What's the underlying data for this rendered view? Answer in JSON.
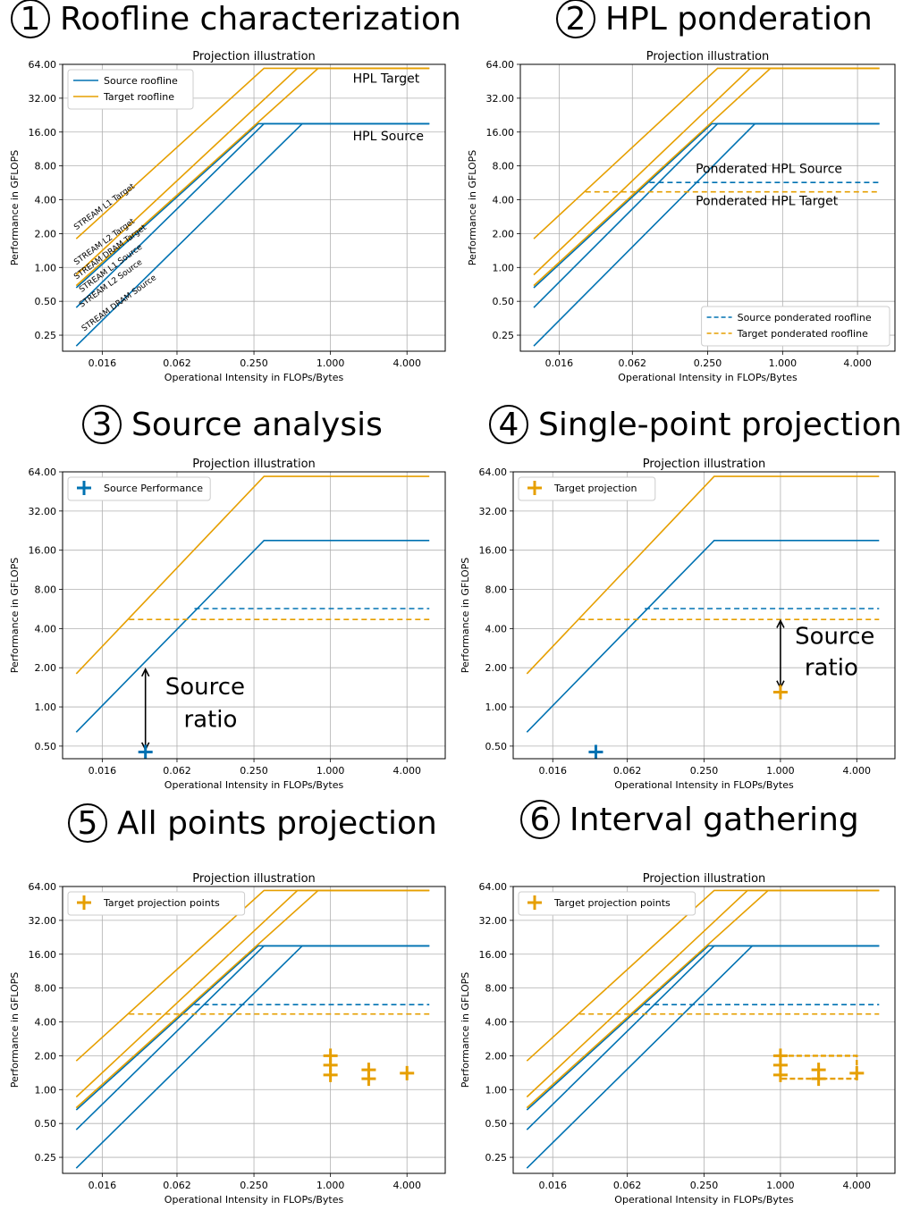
{
  "figure": {
    "colors": {
      "source": "#0072b2",
      "target": "#e69f00",
      "grid": "#b0b0b0",
      "frame": "#000000"
    }
  },
  "chart_data": [
    {
      "type": "line",
      "step_number": "1",
      "step_title": "Roofline characterization",
      "title": "Projection illustration",
      "xlabel": "Operational Intensity in FLOPs/Bytes",
      "ylabel": "Performance in GFLOPS",
      "xscale": "log2",
      "yscale": "log2",
      "xlim": [
        0.0078,
        8
      ],
      "ylim": [
        0.18,
        64
      ],
      "xticks": [
        "0.016",
        "0.062",
        "0.250",
        "1.000",
        "4.000"
      ],
      "yticks": [
        "0.25",
        "0.50",
        "1.00",
        "2.00",
        "4.00",
        "8.00",
        "16.00",
        "32.00",
        "64.00"
      ],
      "grid": true,
      "series": [
        {
          "name": "Source roofline",
          "color": "#0072b2",
          "dash": "",
          "x": [
            0.01,
            0.6,
            6
          ],
          "y": [
            0.2,
            19,
            19
          ]
        },
        {
          "color": "#0072b2",
          "dash": "",
          "x": [
            0.01,
            0.3,
            6
          ],
          "y": [
            0.44,
            19,
            19
          ]
        },
        {
          "color": "#0072b2",
          "dash": "",
          "x": [
            0.01,
            0.27,
            6
          ],
          "y": [
            0.66,
            19,
            19
          ]
        },
        {
          "name": "Target roofline",
          "color": "#e69f00",
          "dash": "",
          "x": [
            0.01,
            0.3,
            6
          ],
          "y": [
            1.8,
            59,
            59
          ]
        },
        {
          "color": "#e69f00",
          "dash": "",
          "x": [
            0.01,
            0.55,
            6
          ],
          "y": [
            0.86,
            59,
            59
          ]
        },
        {
          "color": "#e69f00",
          "dash": "",
          "x": [
            0.01,
            0.8,
            6
          ],
          "y": [
            0.69,
            59,
            59
          ]
        }
      ],
      "legend": {
        "position": "top-left",
        "entries": [
          "Source roofline",
          "Target roofline"
        ]
      },
      "annotations": [
        {
          "text": "HPL Target",
          "x": 1.5,
          "y": 44
        },
        {
          "text": "HPL Source",
          "x": 1.5,
          "y": 13.5
        },
        {
          "text": "STREAM L1 Target",
          "x": 0.01,
          "y": 2.15,
          "rotate": -36
        },
        {
          "text": "STREAM L2 Target",
          "x": 0.01,
          "y": 1.05,
          "rotate": -36
        },
        {
          "text": "STREAM DRAM Target",
          "x": 0.01,
          "y": 0.78,
          "rotate": -36
        },
        {
          "text": "STREAM L1 Source",
          "x": 0.011,
          "y": 0.6,
          "rotate": -36
        },
        {
          "text": "STREAM L2 Source",
          "x": 0.011,
          "y": 0.44,
          "rotate": -36
        },
        {
          "text": "STREAM DRAM Source",
          "x": 0.0115,
          "y": 0.27,
          "rotate": -36
        }
      ]
    },
    {
      "type": "line",
      "step_number": "2",
      "step_title": "HPL ponderation",
      "title": "Projection illustration",
      "xlabel": "Operational Intensity in FLOPs/Bytes",
      "ylabel": "Performance in GFLOPS",
      "xscale": "log2",
      "yscale": "log2",
      "xlim": [
        0.0078,
        8
      ],
      "ylim": [
        0.18,
        64
      ],
      "xticks": [
        "0.016",
        "0.062",
        "0.250",
        "1.000",
        "4.000"
      ],
      "yticks": [
        "0.25",
        "0.50",
        "1.00",
        "2.00",
        "4.00",
        "8.00",
        "16.00",
        "32.00",
        "64.00"
      ],
      "grid": true,
      "series": [
        {
          "color": "#0072b2",
          "dash": "",
          "x": [
            0.01,
            0.6,
            6
          ],
          "y": [
            0.2,
            19,
            19
          ]
        },
        {
          "color": "#0072b2",
          "dash": "",
          "x": [
            0.01,
            0.3,
            6
          ],
          "y": [
            0.44,
            19,
            19
          ]
        },
        {
          "color": "#0072b2",
          "dash": "",
          "x": [
            0.01,
            0.27,
            6
          ],
          "y": [
            0.66,
            19,
            19
          ]
        },
        {
          "color": "#e69f00",
          "dash": "",
          "x": [
            0.01,
            0.3,
            6
          ],
          "y": [
            1.8,
            59,
            59
          ]
        },
        {
          "color": "#e69f00",
          "dash": "",
          "x": [
            0.01,
            0.55,
            6
          ],
          "y": [
            0.86,
            59,
            59
          ]
        },
        {
          "color": "#e69f00",
          "dash": "",
          "x": [
            0.01,
            0.8,
            6
          ],
          "y": [
            0.69,
            59,
            59
          ]
        },
        {
          "name": "Source ponderated roofline",
          "color": "#0072b2",
          "dash": "6,4",
          "x": [
            0.085,
            6
          ],
          "y": [
            5.7,
            5.7
          ]
        },
        {
          "name": "Target ponderated roofline",
          "color": "#e69f00",
          "dash": "6,4",
          "x": [
            0.026,
            6
          ],
          "y": [
            4.7,
            4.7
          ]
        }
      ],
      "legend": {
        "position": "bottom-right",
        "entries": [
          "Source ponderated roofline",
          "Target ponderated roofline"
        ]
      },
      "annotations": [
        {
          "text": "Ponderated HPL Source",
          "x": 0.2,
          "y": 6.9
        },
        {
          "text": "Ponderated HPL Target",
          "x": 0.2,
          "y": 3.6
        }
      ]
    },
    {
      "type": "line",
      "step_number": "3",
      "step_title": "Source analysis",
      "title": "Projection illustration",
      "xlabel": "Operational Intensity in FLOPs/Bytes",
      "ylabel": "Performance in GFLOPS",
      "xscale": "log2",
      "yscale": "log2",
      "xlim": [
        0.0078,
        8
      ],
      "ylim": [
        0.4,
        64
      ],
      "xticks": [
        "0.016",
        "0.062",
        "0.250",
        "1.000",
        "4.000"
      ],
      "yticks": [
        "0.50",
        "1.00",
        "2.00",
        "4.00",
        "8.00",
        "16.00",
        "32.00",
        "64.00"
      ],
      "grid": true,
      "series": [
        {
          "color": "#0072b2",
          "dash": "",
          "x": [
            0.01,
            0.3,
            6
          ],
          "y": [
            0.64,
            19,
            19
          ]
        },
        {
          "color": "#e69f00",
          "dash": "",
          "x": [
            0.01,
            0.3,
            6
          ],
          "y": [
            1.8,
            59,
            59
          ]
        },
        {
          "color": "#0072b2",
          "dash": "6,4",
          "x": [
            0.085,
            6
          ],
          "y": [
            5.7,
            5.7
          ]
        },
        {
          "color": "#e69f00",
          "dash": "6,4",
          "x": [
            0.026,
            6
          ],
          "y": [
            4.7,
            4.7
          ]
        }
      ],
      "points": [
        {
          "name": "Source Performance",
          "color": "#0072b2",
          "x": 0.035,
          "y": 0.45
        }
      ],
      "legend": {
        "position": "top-left",
        "entries": [
          "Source Performance"
        ]
      },
      "arrows": [
        {
          "x": 0.035,
          "y1": 0.47,
          "y2": 1.95
        }
      ],
      "annotations": [
        {
          "text": "Source",
          "x": 0.05,
          "y": 1.25,
          "size": "big"
        },
        {
          "text": "ratio",
          "x": 0.07,
          "y": 0.7,
          "size": "big"
        }
      ]
    },
    {
      "type": "line",
      "step_number": "4",
      "step_title": "Single-point projection",
      "title": "Projection illustration",
      "xlabel": "Operational Intensity in FLOPs/Bytes",
      "ylabel": "Performance in GFLOPS",
      "xscale": "log2",
      "yscale": "log2",
      "xlim": [
        0.0078,
        8
      ],
      "ylim": [
        0.4,
        64
      ],
      "xticks": [
        "0.016",
        "0.062",
        "0.250",
        "1.000",
        "4.000"
      ],
      "yticks": [
        "0.50",
        "1.00",
        "2.00",
        "4.00",
        "8.00",
        "16.00",
        "32.00",
        "64.00"
      ],
      "grid": true,
      "series": [
        {
          "color": "#0072b2",
          "dash": "",
          "x": [
            0.01,
            0.3,
            6
          ],
          "y": [
            0.64,
            19,
            19
          ]
        },
        {
          "color": "#e69f00",
          "dash": "",
          "x": [
            0.01,
            0.3,
            6
          ],
          "y": [
            1.8,
            59,
            59
          ]
        },
        {
          "color": "#0072b2",
          "dash": "6,4",
          "x": [
            0.085,
            6
          ],
          "y": [
            5.7,
            5.7
          ]
        },
        {
          "color": "#e69f00",
          "dash": "6,4",
          "x": [
            0.026,
            6
          ],
          "y": [
            4.7,
            4.7
          ]
        }
      ],
      "points": [
        {
          "name": "Target projection",
          "color": "#e69f00",
          "x": 1.0,
          "y": 1.3
        },
        {
          "color": "#0072b2",
          "x": 0.035,
          "y": 0.45
        }
      ],
      "legend": {
        "position": "top-left",
        "entries": [
          "Target projection"
        ]
      },
      "arrows": [
        {
          "x": 1.0,
          "y1": 1.4,
          "y2": 4.6
        }
      ],
      "annotations": [
        {
          "text": "Source",
          "x": 1.3,
          "y": 3.05,
          "size": "big"
        },
        {
          "text": "ratio",
          "x": 1.55,
          "y": 1.75,
          "size": "big"
        }
      ]
    },
    {
      "type": "scatter",
      "step_number": "5",
      "step_title": "All points projection",
      "title": "Projection illustration",
      "xlabel": "Operational Intensity in FLOPs/Bytes",
      "ylabel": "Performance in GFLOPS",
      "xscale": "log2",
      "yscale": "log2",
      "xlim": [
        0.0078,
        8
      ],
      "ylim": [
        0.18,
        64
      ],
      "xticks": [
        "0.016",
        "0.062",
        "0.250",
        "1.000",
        "4.000"
      ],
      "yticks": [
        "0.25",
        "0.50",
        "1.00",
        "2.00",
        "4.00",
        "8.00",
        "16.00",
        "32.00",
        "64.00"
      ],
      "grid": true,
      "series": [
        {
          "color": "#0072b2",
          "dash": "",
          "x": [
            0.01,
            0.6,
            6
          ],
          "y": [
            0.2,
            19,
            19
          ]
        },
        {
          "color": "#0072b2",
          "dash": "",
          "x": [
            0.01,
            0.3,
            6
          ],
          "y": [
            0.44,
            19,
            19
          ]
        },
        {
          "color": "#0072b2",
          "dash": "",
          "x": [
            0.01,
            0.27,
            6
          ],
          "y": [
            0.66,
            19,
            19
          ]
        },
        {
          "color": "#e69f00",
          "dash": "",
          "x": [
            0.01,
            0.3,
            6
          ],
          "y": [
            1.8,
            59,
            59
          ]
        },
        {
          "color": "#e69f00",
          "dash": "",
          "x": [
            0.01,
            0.55,
            6
          ],
          "y": [
            0.86,
            59,
            59
          ]
        },
        {
          "color": "#e69f00",
          "dash": "",
          "x": [
            0.01,
            0.8,
            6
          ],
          "y": [
            0.69,
            59,
            59
          ]
        },
        {
          "color": "#0072b2",
          "dash": "6,4",
          "x": [
            0.085,
            6
          ],
          "y": [
            5.7,
            5.7
          ]
        },
        {
          "color": "#e69f00",
          "dash": "6,4",
          "x": [
            0.026,
            6
          ],
          "y": [
            4.7,
            4.7
          ]
        }
      ],
      "points": [
        {
          "name": "Target projection points",
          "color": "#e69f00",
          "x": 1.0,
          "y": 2.0
        },
        {
          "color": "#e69f00",
          "x": 1.0,
          "y": 1.65
        },
        {
          "color": "#e69f00",
          "x": 1.0,
          "y": 1.35
        },
        {
          "color": "#e69f00",
          "x": 2.0,
          "y": 1.5
        },
        {
          "color": "#e69f00",
          "x": 2.0,
          "y": 1.25
        },
        {
          "color": "#e69f00",
          "x": 4.0,
          "y": 1.4
        }
      ],
      "legend": {
        "position": "top-left",
        "entries": [
          "Target projection points"
        ]
      }
    },
    {
      "type": "scatter",
      "step_number": "6",
      "step_title": "Interval gathering",
      "title": "Projection illustration",
      "xlabel": "Operational Intensity in FLOPs/Bytes",
      "ylabel": "Performance in GFLOPS",
      "xscale": "log2",
      "yscale": "log2",
      "xlim": [
        0.0078,
        8
      ],
      "ylim": [
        0.18,
        64
      ],
      "xticks": [
        "0.016",
        "0.062",
        "0.250",
        "1.000",
        "4.000"
      ],
      "yticks": [
        "0.25",
        "0.50",
        "1.00",
        "2.00",
        "4.00",
        "8.00",
        "16.00",
        "32.00",
        "64.00"
      ],
      "grid": true,
      "series": [
        {
          "color": "#0072b2",
          "dash": "",
          "x": [
            0.01,
            0.6,
            6
          ],
          "y": [
            0.2,
            19,
            19
          ]
        },
        {
          "color": "#0072b2",
          "dash": "",
          "x": [
            0.01,
            0.3,
            6
          ],
          "y": [
            0.44,
            19,
            19
          ]
        },
        {
          "color": "#0072b2",
          "dash": "",
          "x": [
            0.01,
            0.27,
            6
          ],
          "y": [
            0.66,
            19,
            19
          ]
        },
        {
          "color": "#e69f00",
          "dash": "",
          "x": [
            0.01,
            0.3,
            6
          ],
          "y": [
            1.8,
            59,
            59
          ]
        },
        {
          "color": "#e69f00",
          "dash": "",
          "x": [
            0.01,
            0.55,
            6
          ],
          "y": [
            0.86,
            59,
            59
          ]
        },
        {
          "color": "#e69f00",
          "dash": "",
          "x": [
            0.01,
            0.8,
            6
          ],
          "y": [
            0.69,
            59,
            59
          ]
        },
        {
          "color": "#0072b2",
          "dash": "6,4",
          "x": [
            0.085,
            6
          ],
          "y": [
            5.7,
            5.7
          ]
        },
        {
          "color": "#e69f00",
          "dash": "6,4",
          "x": [
            0.026,
            6
          ],
          "y": [
            4.7,
            4.7
          ]
        }
      ],
      "points": [
        {
          "name": "Target projection points",
          "color": "#e69f00",
          "x": 1.0,
          "y": 2.0
        },
        {
          "color": "#e69f00",
          "x": 1.0,
          "y": 1.65
        },
        {
          "color": "#e69f00",
          "x": 1.0,
          "y": 1.35
        },
        {
          "color": "#e69f00",
          "x": 2.0,
          "y": 1.5
        },
        {
          "color": "#e69f00",
          "x": 2.0,
          "y": 1.25
        },
        {
          "color": "#e69f00",
          "x": 4.0,
          "y": 1.4
        }
      ],
      "interval_box": {
        "color": "#e69f00",
        "x": [
          1.0,
          4.0
        ],
        "y": [
          1.25,
          2.0
        ]
      },
      "legend": {
        "position": "top-left",
        "entries": [
          "Target projection points"
        ]
      }
    }
  ]
}
